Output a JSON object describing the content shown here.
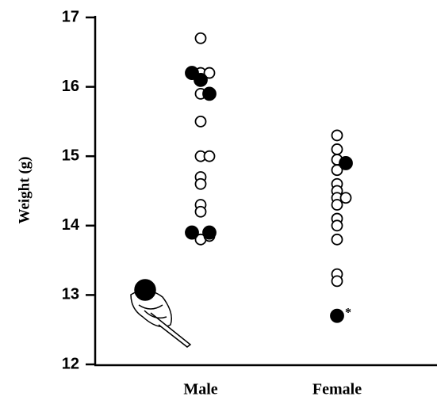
{
  "chart_data": {
    "type": "dotplot",
    "y_label": "Weight (g)",
    "categories": [
      "Male",
      "Female"
    ],
    "ylim": [
      12,
      17
    ],
    "yticks": [
      12,
      13,
      14,
      15,
      16,
      17
    ],
    "series": [
      {
        "fill": "#ffffff",
        "values": [
          [
            16.7,
            16.2,
            16.2,
            15.9,
            15.5,
            15.0,
            15.0,
            14.7,
            14.6,
            14.3,
            14.2,
            13.8,
            13.85
          ],
          [
            15.3,
            15.1,
            14.95,
            14.8,
            14.6,
            14.5,
            14.4,
            14.4,
            14.3,
            14.1,
            14.0,
            13.8,
            13.3,
            13.2
          ]
        ]
      },
      {
        "fill": "#000000",
        "values": [
          [
            16.2,
            16.1,
            15.9,
            13.9,
            13.9
          ],
          [
            14.9,
            12.7
          ]
        ]
      }
    ],
    "annotation": "*"
  }
}
